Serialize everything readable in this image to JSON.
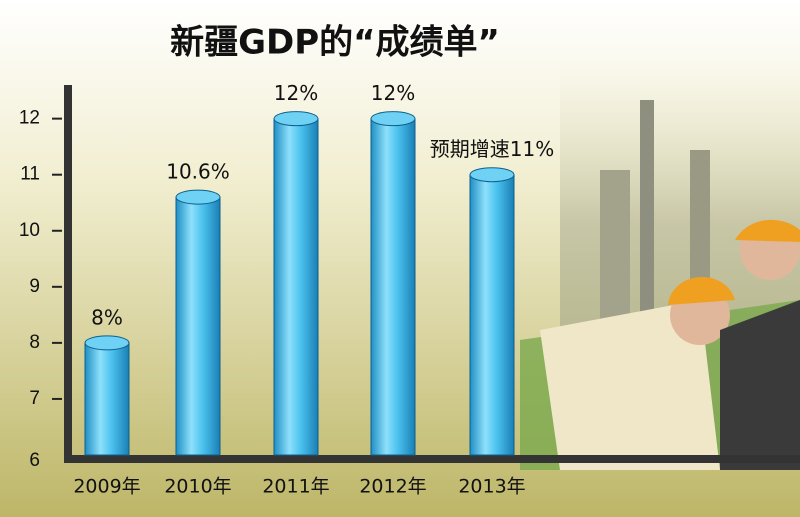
{
  "chart_data": {
    "type": "bar",
    "title": "新疆GDP的“成绩单”",
    "categories": [
      "2009年",
      "2010年",
      "2011年",
      "2012年",
      "2013年"
    ],
    "values": [
      8,
      10.6,
      12,
      12,
      11
    ],
    "value_labels": [
      "8%",
      "10.6%",
      "12%",
      "12%",
      "预期增速11%"
    ],
    "color": "#38b4e6",
    "ylim": [
      6,
      12.6
    ],
    "yticks": [
      6,
      7,
      8,
      9,
      10,
      11,
      12
    ]
  }
}
